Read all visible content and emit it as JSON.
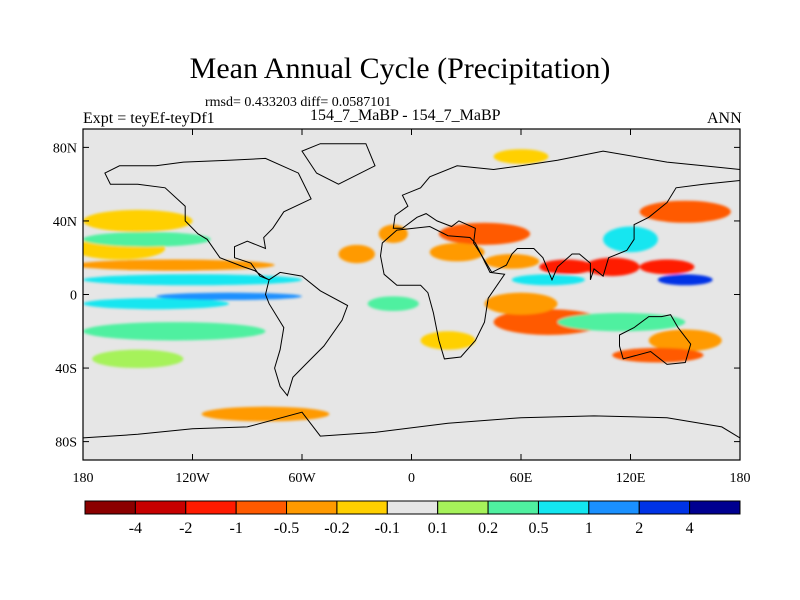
{
  "chart_data": {
    "type": "heatmap",
    "title": "Mean Annual Cycle (Precipitation)",
    "stats_label": "rmsd= 0.433203 diff= 0.0587101",
    "left_label": "Expt = teyEf-teyDf1",
    "center_label": "154_7_MaBP - 154_7_MaBP",
    "right_label": "ANN",
    "x_ticks": [
      "180",
      "120W",
      "60W",
      "0",
      "60E",
      "120E",
      "180"
    ],
    "x_tick_lon": [
      -180,
      -120,
      -60,
      0,
      60,
      120,
      180
    ],
    "y_ticks": [
      "80N",
      "40N",
      "0",
      "40S",
      "80S"
    ],
    "y_tick_lat": [
      80,
      40,
      0,
      -40,
      -80
    ],
    "xlim": [
      -180,
      180
    ],
    "ylim": [
      -90,
      90
    ],
    "colorbar": {
      "labels": [
        "-4",
        "-2",
        "-1",
        "-0.5",
        "-0.2",
        "-0.1",
        "0.1",
        "0.2",
        "0.5",
        "1",
        "2",
        "4"
      ],
      "colors": [
        "#8b0000",
        "#c70000",
        "#ff1a00",
        "#ff5a00",
        "#ff9a00",
        "#ffd000",
        "#e6e6e6",
        "#a6f25a",
        "#4ff0a0",
        "#13e6f0",
        "#1a90ff",
        "#0033e6",
        "#000090"
      ]
    },
    "anomaly_regions": [
      {
        "lon": -130,
        "lat": 16,
        "rlon": 55,
        "rlat": 3,
        "level": 4
      },
      {
        "lon": -160,
        "lat": 25,
        "rlon": 25,
        "rlat": 6,
        "level": 5
      },
      {
        "lon": -150,
        "lat": 40,
        "rlon": 30,
        "rlat": 6,
        "level": 5
      },
      {
        "lon": -145,
        "lat": 30,
        "rlon": 35,
        "rlat": 4,
        "level": 8
      },
      {
        "lon": -120,
        "lat": 8,
        "rlon": 60,
        "rlat": 3,
        "level": 9
      },
      {
        "lon": -140,
        "lat": -5,
        "rlon": 40,
        "rlat": 3,
        "level": 9
      },
      {
        "lon": -100,
        "lat": -1,
        "rlon": 40,
        "rlat": 2,
        "level": 10
      },
      {
        "lon": -130,
        "lat": -20,
        "rlon": 50,
        "rlat": 5,
        "level": 8
      },
      {
        "lon": -150,
        "lat": -35,
        "rlon": 25,
        "rlat": 5,
        "level": 7
      },
      {
        "lon": -30,
        "lat": 22,
        "rlon": 10,
        "rlat": 5,
        "level": 4
      },
      {
        "lon": -10,
        "lat": 33,
        "rlon": 8,
        "rlat": 5,
        "level": 4
      },
      {
        "lon": -10,
        "lat": -5,
        "rlon": 14,
        "rlat": 4,
        "level": 8
      },
      {
        "lon": 20,
        "lat": -25,
        "rlon": 15,
        "rlat": 5,
        "level": 5
      },
      {
        "lon": 40,
        "lat": 33,
        "rlon": 25,
        "rlat": 6,
        "level": 3
      },
      {
        "lon": 25,
        "lat": 23,
        "rlon": 15,
        "rlat": 5,
        "level": 4
      },
      {
        "lon": 55,
        "lat": 18,
        "rlon": 15,
        "rlat": 4,
        "level": 4
      },
      {
        "lon": 75,
        "lat": 8,
        "rlon": 20,
        "rlat": 3,
        "level": 9
      },
      {
        "lon": 120,
        "lat": 30,
        "rlon": 15,
        "rlat": 7,
        "level": 9
      },
      {
        "lon": 150,
        "lat": 45,
        "rlon": 25,
        "rlat": 6,
        "level": 3
      },
      {
        "lon": 140,
        "lat": 15,
        "rlon": 15,
        "rlat": 4,
        "level": 2
      },
      {
        "lon": 110,
        "lat": 15,
        "rlon": 15,
        "rlat": 5,
        "level": 2
      },
      {
        "lon": 85,
        "lat": 15,
        "rlon": 15,
        "rlat": 4,
        "level": 2
      },
      {
        "lon": 150,
        "lat": 8,
        "rlon": 15,
        "rlat": 3,
        "level": 11
      },
      {
        "lon": 75,
        "lat": -15,
        "rlon": 30,
        "rlat": 7,
        "level": 3
      },
      {
        "lon": 60,
        "lat": -5,
        "rlon": 20,
        "rlat": 6,
        "level": 4
      },
      {
        "lon": 115,
        "lat": -15,
        "rlon": 35,
        "rlat": 5,
        "level": 8
      },
      {
        "lon": 150,
        "lat": -25,
        "rlon": 20,
        "rlat": 6,
        "level": 4
      },
      {
        "lon": 135,
        "lat": -33,
        "rlon": 25,
        "rlat": 4,
        "level": 3
      },
      {
        "lon": -80,
        "lat": -65,
        "rlon": 35,
        "rlat": 4,
        "level": 4
      },
      {
        "lon": 60,
        "lat": 75,
        "rlon": 15,
        "rlat": 4,
        "level": 5
      }
    ]
  }
}
